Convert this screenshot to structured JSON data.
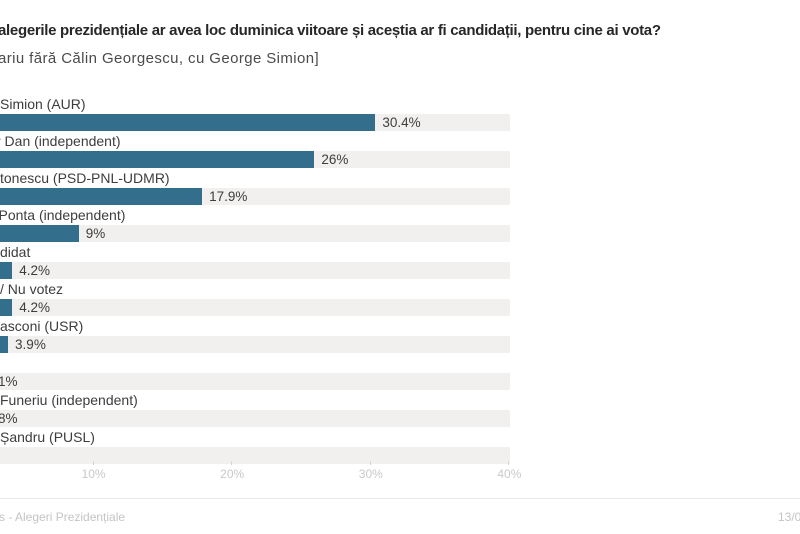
{
  "header": {
    "title": "alegerile prezidențiale ar avea loc duminica viitoare și aceștia ar fi candidații, pentru cine ai vota?",
    "subtitle": "ariu fără Călin Georgescu, cu George Simion]"
  },
  "chart_data": {
    "type": "bar",
    "orientation": "horizontal",
    "bar_color": "#336e8c",
    "track_color": "#f1f0ee",
    "xlim": [
      0,
      40
    ],
    "x_ticks": [
      "10%",
      "20%",
      "30%",
      "40%"
    ],
    "grid": "off",
    "legend": "none",
    "categories": [
      "Simion (AUR)",
      "r Dan (independent)",
      "tonescu (PSD-PNL-UDMR)",
      "Ponta (independent)",
      "didat",
      "/ Nu votez",
      "asconi (USR)",
      "",
      "Funeriu (independent)",
      "Șandru (PUSL)"
    ],
    "values": [
      30.4,
      26,
      17.9,
      9,
      4.2,
      4.2,
      3.9,
      null,
      null,
      null
    ],
    "rows": [
      {
        "label": "Simion (AUR)",
        "value_label": "30.4%",
        "pct": 30.4
      },
      {
        "label": "r Dan (independent)",
        "value_label": "26%",
        "pct": 26
      },
      {
        "label": "tonescu (PSD-PNL-UDMR)",
        "value_label": "17.9%",
        "pct": 17.9
      },
      {
        "label": "Ponta (independent)",
        "value_label": "9%",
        "pct": 9
      },
      {
        "label": "didat",
        "value_label": "4.2%",
        "pct": 4.2
      },
      {
        "label": "/ Nu votez",
        "value_label": "4.2%",
        "pct": 4.2
      },
      {
        "label": "asconi (USR)",
        "value_label": "3.9%",
        "pct": 3.9
      },
      {
        "label": "",
        "value_label": "1%",
        "pct": null
      },
      {
        "label": "Funeriu (independent)",
        "value_label": "8%",
        "pct": null
      },
      {
        "label": "Șandru (PUSL)",
        "value_label": "",
        "pct": null
      }
    ]
  },
  "footer": {
    "source": "s - Alegeri Prezidențiale",
    "date": "13/0"
  }
}
